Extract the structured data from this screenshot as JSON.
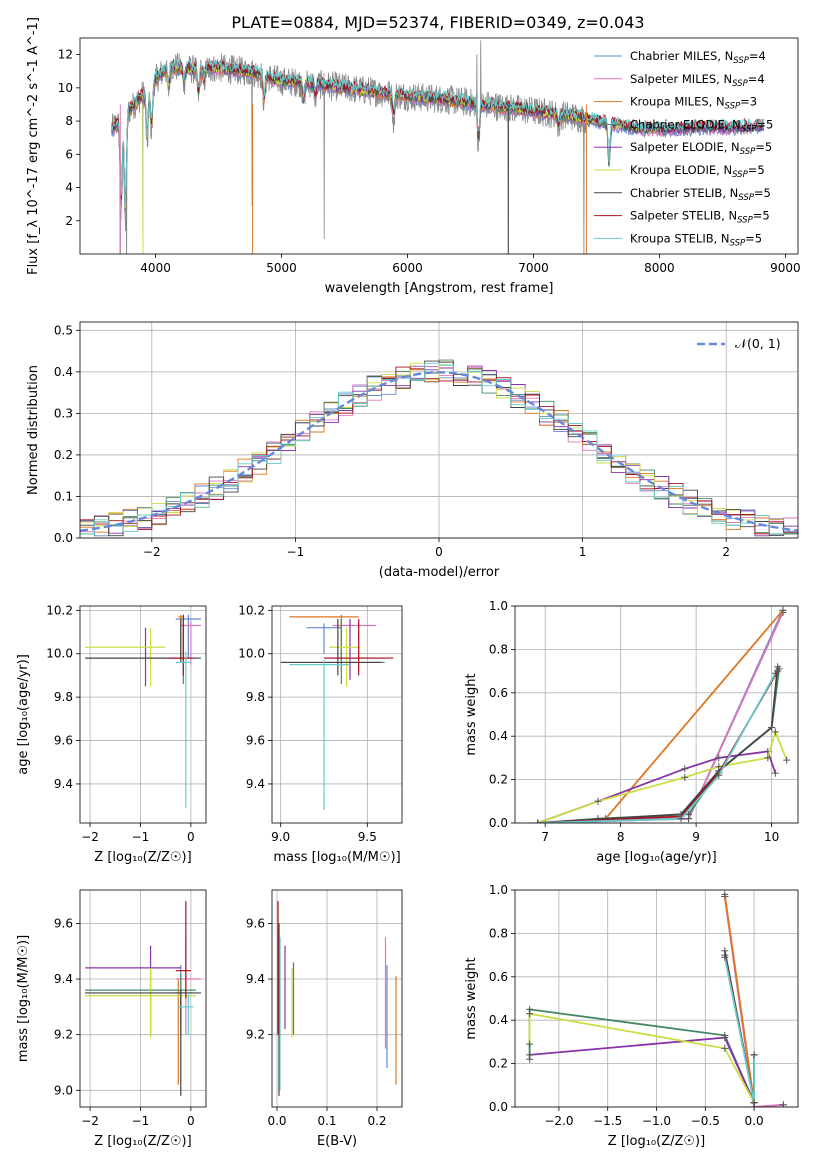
{
  "figure_title": "PLATE=0884, MJD=52374, FIBERID=0349, z=0.043",
  "series_colors": [
    "#6688cc",
    "#dd77bb",
    "#dd7722",
    "#448866",
    "#8833aa",
    "#ccdd44",
    "#444444",
    "#aa1122",
    "#66cccc"
  ],
  "chart_data": [
    {
      "type": "line",
      "name": "spectrum",
      "xlabel": "wavelength [Angstrom, rest frame]",
      "ylabel": "Flux [f_λ 10^-17 erg cm^-2 s^-1 A^-1]",
      "xlim": [
        3400,
        9100
      ],
      "ylim": [
        0,
        13
      ],
      "xticks": [
        "4000",
        "5000",
        "6000",
        "7000",
        "8000",
        "9000"
      ],
      "yticks": [
        "2",
        "4",
        "6",
        "8",
        "10",
        "12"
      ],
      "legend_position": "upper-right",
      "data_color": "#888888",
      "data_range": [
        3650,
        7420
      ],
      "legend": [
        "Chabrier MILES, N_SSP=4",
        "Salpeter MILES, N_SSP=4",
        "Kroupa MILES, N_SSP=3",
        "Chabrier ELODIE, N_SSP=5",
        "Salpeter ELODIE, N_SSP=5",
        "Kroupa ELODIE, N_SSP=5",
        "Chabrier STELIB, N_SSP=5",
        "Salpeter STELIB, N_SSP=5",
        "Kroupa STELIB, N_SSP=5"
      ],
      "legend_main": [
        "Chabrier MILES, N",
        "Salpeter MILES, N",
        "Kroupa MILES, N",
        "Chabrier ELODIE, N",
        "Salpeter ELODIE, N",
        "Kroupa ELODIE, N",
        "Chabrier STELIB, N",
        "Salpeter STELIB, N",
        "Kroupa STELIB, N"
      ],
      "legend_sub": "SSP",
      "legend_val": [
        "=4",
        "=4",
        "=3",
        "=5",
        "=5",
        "=5",
        "=5",
        "=5",
        "=5"
      ],
      "continuum": [
        [
          3650,
          7.5
        ],
        [
          3750,
          8.3
        ],
        [
          3900,
          9.6
        ],
        [
          4000,
          10.5
        ],
        [
          4100,
          11.3
        ],
        [
          4300,
          11.1
        ],
        [
          4500,
          11.2
        ],
        [
          4800,
          10.9
        ],
        [
          5000,
          10.4
        ],
        [
          5200,
          10.3
        ],
        [
          5500,
          10.0
        ],
        [
          5800,
          9.7
        ],
        [
          6000,
          9.5
        ],
        [
          6300,
          9.3
        ],
        [
          6500,
          9.1
        ],
        [
          6700,
          8.9
        ],
        [
          7000,
          8.6
        ],
        [
          7300,
          8.3
        ],
        [
          7500,
          8.0
        ],
        [
          7800,
          7.6
        ],
        [
          8000,
          7.5
        ],
        [
          8300,
          7.6
        ],
        [
          8500,
          7.6
        ],
        [
          8800,
          7.7
        ]
      ],
      "absorption": [
        [
          3727,
          -6
        ],
        [
          3760,
          -7
        ],
        [
          3933,
          -3.5
        ],
        [
          3968,
          -3
        ],
        [
          4102,
          -1.5
        ],
        [
          4226,
          -0.8
        ],
        [
          4340,
          -1.6
        ],
        [
          4384,
          -0.8
        ],
        [
          4861,
          -1.6
        ],
        [
          5175,
          -1.2
        ],
        [
          5270,
          -0.8
        ],
        [
          5890,
          -1.5
        ],
        [
          6563,
          -2.5
        ],
        [
          7200,
          -0.8
        ],
        [
          7600,
          -3.0
        ]
      ],
      "spikes": [
        [
          3720,
          -8
        ],
        [
          3770,
          -6
        ],
        [
          3900,
          -9
        ],
        [
          4765,
          -8
        ],
        [
          5340,
          -9
        ],
        [
          6550,
          4
        ],
        [
          6580,
          4
        ],
        [
          6800,
          -8
        ],
        [
          7400,
          -8
        ],
        [
          7420,
          -6
        ],
        [
          7700,
          -2
        ]
      ]
    },
    {
      "type": "line",
      "name": "residual-histogram",
      "xlabel": "(data-model)/error",
      "ylabel": "Normed distribution",
      "xlim": [
        -2.5,
        2.5
      ],
      "ylim": [
        0,
        0.52
      ],
      "xticks": [
        "−2",
        "−1",
        "0",
        "1",
        "2"
      ],
      "yticks": [
        "0.0",
        "0.1",
        "0.2",
        "0.3",
        "0.4",
        "0.5"
      ],
      "grid": true,
      "bin_width": 0.1,
      "legend": [
        "𝒩(0, 1)"
      ],
      "normal_color": "#6688dd"
    },
    {
      "type": "scatter",
      "name": "age-vs-metallicity",
      "xlabel": "Z [log₁₀(Z/Z☉)]",
      "ylabel": "age  [log₁₀(age/yr)]",
      "xlim": [
        -2.2,
        0.3
      ],
      "ylim": [
        9.22,
        10.22
      ],
      "xticks": [
        "−2",
        "−1",
        "0"
      ],
      "yticks": [
        "9.4",
        "9.6",
        "9.8",
        "10.0",
        "10.2"
      ],
      "grid": true,
      "points": [
        {
          "series": 0,
          "x": -0.05,
          "y": 10.16,
          "xerr": [
            0.25,
            0.25
          ],
          "yerr": [
            0.18,
            0.02
          ]
        },
        {
          "series": 1,
          "x": 0.0,
          "y": 10.13,
          "xerr": [
            0.2,
            0.2
          ],
          "yerr": [
            0.18,
            0.02
          ]
        },
        {
          "series": 2,
          "x": -0.2,
          "y": 10.17,
          "xerr": [
            0.05,
            0.05
          ],
          "yerr": [
            0.2,
            0.01
          ]
        },
        {
          "series": 3,
          "x": -0.15,
          "y": 9.98,
          "xerr": [
            1.95,
            0.3
          ],
          "yerr": [
            0.12,
            0.18
          ]
        },
        {
          "series": 4,
          "x": -0.9,
          "y": 9.98,
          "xerr": [
            1.2,
            0.7
          ],
          "yerr": [
            0.13,
            0.14
          ]
        },
        {
          "series": 5,
          "x": -0.8,
          "y": 10.03,
          "xerr": [
            1.3,
            0.3
          ],
          "yerr": [
            0.18,
            0.09
          ]
        },
        {
          "series": 6,
          "x": -0.2,
          "y": 9.98,
          "xerr": [
            1.9,
            0.4
          ],
          "yerr": [
            0.02,
            0.18
          ]
        },
        {
          "series": 7,
          "x": -0.15,
          "y": 9.98,
          "xerr": [
            0.3,
            0.2
          ],
          "yerr": [
            0.08,
            0.2
          ]
        },
        {
          "series": 8,
          "x": -0.1,
          "y": 9.96,
          "xerr": [
            0.2,
            0.1
          ],
          "yerr": [
            0.67,
            0.05
          ]
        }
      ]
    },
    {
      "type": "scatter",
      "name": "age-vs-mass",
      "xlabel": "mass [log₁₀(M/M☉)]",
      "ylabel": "",
      "xlim": [
        8.95,
        9.7
      ],
      "ylim": [
        9.22,
        10.22
      ],
      "xticks": [
        "9.0",
        "9.5"
      ],
      "yticks": [
        "9.4",
        "9.6",
        "9.8",
        "10.0",
        "10.2"
      ],
      "grid": true,
      "points": [
        {
          "series": 0,
          "x": 9.25,
          "y": 10.12,
          "xerr": [
            0.1,
            0.1
          ],
          "yerr": [
            0.12,
            0.02
          ]
        },
        {
          "series": 1,
          "x": 9.45,
          "y": 10.13,
          "xerr": [
            0.15,
            0.1
          ],
          "yerr": [
            0.15,
            0.02
          ]
        },
        {
          "series": 2,
          "x": 9.35,
          "y": 10.17,
          "xerr": [
            0.3,
            0.1
          ],
          "yerr": [
            0.2,
            0.01
          ]
        },
        {
          "series": 3,
          "x": 9.35,
          "y": 9.96,
          "xerr": [
            0.35,
            0.25
          ],
          "yerr": [
            0.1,
            0.2
          ]
        },
        {
          "series": 4,
          "x": 9.4,
          "y": 9.98,
          "xerr": [
            0.15,
            0.2
          ],
          "yerr": [
            0.1,
            0.18
          ]
        },
        {
          "series": 5,
          "x": 9.38,
          "y": 10.03,
          "xerr": [
            0.1,
            0.08
          ],
          "yerr": [
            0.18,
            0.09
          ]
        },
        {
          "series": 6,
          "x": 9.33,
          "y": 9.96,
          "xerr": [
            0.33,
            0.25
          ],
          "yerr": [
            0.06,
            0.2
          ]
        },
        {
          "series": 7,
          "x": 9.45,
          "y": 9.98,
          "xerr": [
            0.2,
            0.2
          ],
          "yerr": [
            0.08,
            0.18
          ]
        },
        {
          "series": 8,
          "x": 9.25,
          "y": 9.95,
          "xerr": [
            0.2,
            0.15
          ],
          "yerr": [
            0.67,
            0.02
          ]
        }
      ]
    },
    {
      "type": "line",
      "name": "mass-weight-vs-age",
      "xlabel": "age  [log₁₀(age/yr)]",
      "ylabel": "mass weight",
      "xlim": [
        6.6,
        10.35
      ],
      "ylim": [
        0,
        1.0
      ],
      "xticks": [
        "7",
        "8",
        "9",
        "10"
      ],
      "yticks": [
        "0.0",
        "0.2",
        "0.4",
        "0.6",
        "0.8",
        "1.0"
      ],
      "grid": true,
      "series": [
        {
          "series": 0,
          "x": [
            6.9,
            8.9,
            10.15
          ],
          "y": [
            0.0,
            0.02,
            0.98
          ]
        },
        {
          "series": 1,
          "x": [
            6.9,
            8.9,
            10.15
          ],
          "y": [
            0.0,
            0.02,
            0.97
          ]
        },
        {
          "series": 2,
          "x": [
            6.9,
            7.8,
            10.15
          ],
          "y": [
            0.0,
            0.02,
            0.98
          ]
        },
        {
          "series": 3,
          "x": [
            6.9,
            7.7,
            8.9,
            9.3,
            10.0,
            10.1
          ],
          "y": [
            0.0,
            0.02,
            0.04,
            0.24,
            0.44,
            0.71
          ]
        },
        {
          "series": 4,
          "x": [
            6.9,
            7.7,
            8.85,
            9.3,
            9.95,
            10.05
          ],
          "y": [
            0.0,
            0.1,
            0.25,
            0.3,
            0.33,
            0.23
          ]
        },
        {
          "series": 5,
          "x": [
            6.9,
            7.7,
            8.85,
            9.3,
            9.95,
            10.05,
            10.2
          ],
          "y": [
            0.0,
            0.1,
            0.21,
            0.26,
            0.3,
            0.42,
            0.29
          ]
        },
        {
          "series": 6,
          "x": [
            6.9,
            8.8,
            9.3,
            10.0,
            10.08
          ],
          "y": [
            0.0,
            0.04,
            0.24,
            0.44,
            0.72
          ]
        },
        {
          "series": 7,
          "x": [
            6.9,
            8.8,
            9.3,
            10.08
          ],
          "y": [
            0.0,
            0.03,
            0.23,
            0.7
          ]
        },
        {
          "series": 8,
          "x": [
            6.9,
            8.8,
            9.3,
            10.05
          ],
          "y": [
            0.0,
            0.02,
            0.22,
            0.69
          ]
        }
      ]
    },
    {
      "type": "scatter",
      "name": "mass-vs-metallicity",
      "xlabel": "Z [log₁₀(Z/Z☉)]",
      "ylabel": "mass [log₁₀(M/M☉)]",
      "xlim": [
        -2.2,
        0.3
      ],
      "ylim": [
        8.94,
        9.72
      ],
      "xticks": [
        "−2",
        "−1",
        "0"
      ],
      "yticks": [
        "9.0",
        "9.2",
        "9.4",
        "9.6"
      ],
      "grid": true,
      "points": [
        {
          "series": 0,
          "x": -0.2,
          "y": 9.35,
          "xerr": [
            0.2,
            0.25
          ],
          "yerr": [
            0.1,
            0.1
          ]
        },
        {
          "series": 1,
          "x": -0.1,
          "y": 9.4,
          "xerr": [
            0.2,
            0.3
          ],
          "yerr": [
            0.2,
            0.15
          ]
        },
        {
          "series": 2,
          "x": -0.25,
          "y": 9.35,
          "xerr": [
            0.05,
            0.05
          ],
          "yerr": [
            0.33,
            0.05
          ]
        },
        {
          "series": 3,
          "x": -0.2,
          "y": 9.36,
          "xerr": [
            1.9,
            0.3
          ],
          "yerr": [
            0.16,
            0.06
          ]
        },
        {
          "series": 4,
          "x": -0.8,
          "y": 9.44,
          "xerr": [
            1.3,
            0.6
          ],
          "yerr": [
            0.24,
            0.08
          ]
        },
        {
          "series": 5,
          "x": -0.8,
          "y": 9.34,
          "xerr": [
            1.3,
            0.9
          ],
          "yerr": [
            0.15,
            0.1
          ]
        },
        {
          "series": 6,
          "x": -0.2,
          "y": 9.35,
          "xerr": [
            1.9,
            0.4
          ],
          "yerr": [
            0.37,
            0.01
          ]
        },
        {
          "series": 7,
          "x": -0.1,
          "y": 9.43,
          "xerr": [
            0.2,
            0.1
          ],
          "yerr": [
            0.1,
            0.25
          ]
        },
        {
          "series": 8,
          "x": -0.05,
          "y": 9.3,
          "xerr": [
            0.2,
            0.1
          ],
          "yerr": [
            0.1,
            0.05
          ]
        }
      ]
    },
    {
      "type": "scatter",
      "name": "mass-vs-reddening",
      "xlabel": "E(B-V)",
      "ylabel": "",
      "xlim": [
        -0.01,
        0.25
      ],
      "ylim": [
        8.94,
        9.72
      ],
      "xticks": [
        "0.0",
        "0.1",
        "0.2"
      ],
      "yticks": [
        "9.2",
        "9.4",
        "9.6"
      ],
      "grid": true,
      "points": [
        {
          "series": 0,
          "x": 0.22,
          "y": 9.35,
          "xerr": [
            0.0,
            0.0
          ],
          "yerr": [
            0.27,
            0.1
          ]
        },
        {
          "series": 1,
          "x": 0.217,
          "y": 9.4,
          "xerr": [
            0.0,
            0.0
          ],
          "yerr": [
            0.25,
            0.15
          ]
        },
        {
          "series": 2,
          "x": 0.238,
          "y": 9.35,
          "xerr": [
            0.0,
            0.0
          ],
          "yerr": [
            0.33,
            0.06
          ]
        },
        {
          "series": 3,
          "x": 0.033,
          "y": 9.36,
          "xerr": [
            0.0,
            0.0
          ],
          "yerr": [
            0.16,
            0.1
          ]
        },
        {
          "series": 4,
          "x": 0.016,
          "y": 9.44,
          "xerr": [
            0.0,
            0.0
          ],
          "yerr": [
            0.22,
            0.08
          ]
        },
        {
          "series": 5,
          "x": 0.03,
          "y": 9.34,
          "xerr": [
            0.0,
            0.0
          ],
          "yerr": [
            0.15,
            0.1
          ]
        },
        {
          "series": 6,
          "x": 0.004,
          "y": 9.35,
          "xerr": [
            0.0,
            0.0
          ],
          "yerr": [
            0.37,
            0.25
          ]
        },
        {
          "series": 7,
          "x": 0.002,
          "y": 9.43,
          "xerr": [
            0.0,
            0.0
          ],
          "yerr": [
            0.23,
            0.25
          ]
        },
        {
          "series": 8,
          "x": 0.006,
          "y": 9.3,
          "xerr": [
            0.0,
            0.0
          ],
          "yerr": [
            0.3,
            0.25
          ]
        }
      ]
    },
    {
      "type": "line",
      "name": "mass-weight-vs-metallicity",
      "xlabel": "Z [log₁₀(Z/Z☉)]",
      "ylabel": "mass weight",
      "xlim": [
        -2.45,
        0.45
      ],
      "ylim": [
        0,
        1.0
      ],
      "xticks": [
        "−2.0",
        "−1.5",
        "−1.0",
        "−0.5",
        "0.0"
      ],
      "yticks": [
        "0.0",
        "0.2",
        "0.4",
        "0.6",
        "0.8",
        "1.0"
      ],
      "grid": true,
      "series": [
        {
          "series": 0,
          "x": [
            -0.3,
            0.0,
            0.3
          ],
          "y": [
            0.97,
            0.0,
            0.01
          ]
        },
        {
          "series": 1,
          "x": [
            -0.3,
            0.0,
            0.3
          ],
          "y": [
            0.97,
            0.0,
            0.01
          ]
        },
        {
          "series": 2,
          "x": [
            -0.3,
            0.0
          ],
          "y": [
            0.98,
            0.02
          ]
        },
        {
          "series": 3,
          "x": [
            -2.3,
            -2.3,
            -0.3,
            0.0,
            0.0
          ],
          "y": [
            0.22,
            0.45,
            0.33,
            0.02,
            0.24
          ]
        },
        {
          "series": 4,
          "x": [
            -2.3,
            -0.3,
            0.0,
            0.0
          ],
          "y": [
            0.24,
            0.32,
            0.02,
            0.24
          ]
        },
        {
          "series": 5,
          "x": [
            -2.3,
            -2.3,
            -0.3,
            0.0
          ],
          "y": [
            0.29,
            0.43,
            0.27,
            0.02
          ]
        },
        {
          "series": 6,
          "x": [
            -0.3,
            0.0,
            0.0
          ],
          "y": [
            0.72,
            0.02,
            0.24
          ]
        },
        {
          "series": 7,
          "x": [
            -0.3,
            0.0
          ],
          "y": [
            0.7,
            0.02
          ]
        },
        {
          "series": 8,
          "x": [
            -0.3,
            0.0,
            0.0
          ],
          "y": [
            0.69,
            0.02,
            0.24
          ]
        }
      ]
    }
  ]
}
